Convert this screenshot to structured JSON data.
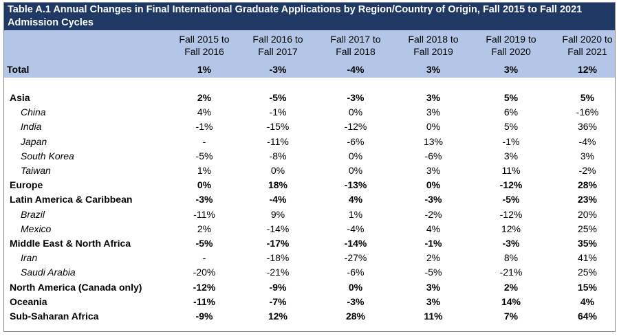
{
  "title": "Table A.1 Annual Changes in Final International Graduate Applications by Region/Country of Origin, Fall 2015 to Fall 2021 Admission Cycles",
  "chart_data": {
    "type": "table",
    "columns": [
      [
        "Fall 2015 to",
        "Fall 2016"
      ],
      [
        "Fall 2016 to",
        "Fall 2017"
      ],
      [
        "Fall 2017 to",
        "Fall 2018"
      ],
      [
        "Fall 2018 to",
        "Fall 2019"
      ],
      [
        "Fall 2019 to",
        "Fall 2020"
      ],
      [
        "Fall 2020 to",
        "Fall 2021"
      ]
    ],
    "total": {
      "label": "Total",
      "values": [
        "1%",
        "-3%",
        "-4%",
        "3%",
        "3%",
        "12%"
      ]
    },
    "rows": [
      {
        "label": "Asia",
        "level": 1,
        "values": [
          "2%",
          "-5%",
          "-3%",
          "3%",
          "5%",
          "5%"
        ]
      },
      {
        "label": "China",
        "level": 2,
        "values": [
          "4%",
          "-1%",
          "0%",
          "3%",
          "6%",
          "-16%"
        ]
      },
      {
        "label": "India",
        "level": 2,
        "values": [
          "-1%",
          "-15%",
          "-12%",
          "0%",
          "5%",
          "36%"
        ]
      },
      {
        "label": "Japan",
        "level": 2,
        "values": [
          "-",
          "-11%",
          "-6%",
          "13%",
          "-1%",
          "-4%"
        ]
      },
      {
        "label": "South Korea",
        "level": 2,
        "values": [
          "-5%",
          "-8%",
          "0%",
          "-6%",
          "3%",
          "3%"
        ]
      },
      {
        "label": "Taiwan",
        "level": 2,
        "values": [
          "1%",
          "0%",
          "0%",
          "3%",
          "11%",
          "-2%"
        ]
      },
      {
        "label": "Europe",
        "level": 1,
        "values": [
          "0%",
          "18%",
          "-13%",
          "0%",
          "-12%",
          "28%"
        ]
      },
      {
        "label": "Latin America & Caribbean",
        "level": 1,
        "values": [
          "-3%",
          "-4%",
          "4%",
          "-3%",
          "-5%",
          "23%"
        ]
      },
      {
        "label": "Brazil",
        "level": 2,
        "values": [
          "-11%",
          "9%",
          "1%",
          "-2%",
          "-12%",
          "20%"
        ]
      },
      {
        "label": "Mexico",
        "level": 2,
        "values": [
          "2%",
          "-14%",
          "-4%",
          "4%",
          "12%",
          "25%"
        ]
      },
      {
        "label": "Middle East & North Africa",
        "level": 1,
        "values": [
          "-5%",
          "-17%",
          "-14%",
          "-1%",
          "-3%",
          "35%"
        ]
      },
      {
        "label": "Iran",
        "level": 2,
        "values": [
          "-",
          "-18%",
          "-27%",
          "2%",
          "8%",
          "41%"
        ]
      },
      {
        "label": "Saudi Arabia",
        "level": 2,
        "values": [
          "-20%",
          "-21%",
          "-6%",
          "-5%",
          "-21%",
          "25%"
        ]
      },
      {
        "label": "North America (Canada only)",
        "level": 1,
        "values": [
          "-12%",
          "-9%",
          "0%",
          "3%",
          "2%",
          "15%"
        ]
      },
      {
        "label": "Oceania",
        "level": 1,
        "values": [
          "-11%",
          "-7%",
          "-3%",
          "3%",
          "14%",
          "4%"
        ]
      },
      {
        "label": "Sub-Saharan Africa",
        "level": 1,
        "values": [
          "-9%",
          "12%",
          "28%",
          "11%",
          "7%",
          "64%"
        ]
      }
    ]
  },
  "colors": {
    "title_bg": "#1f3864",
    "header_bg": "#b4c6e7",
    "title_text": "#ffffff"
  }
}
